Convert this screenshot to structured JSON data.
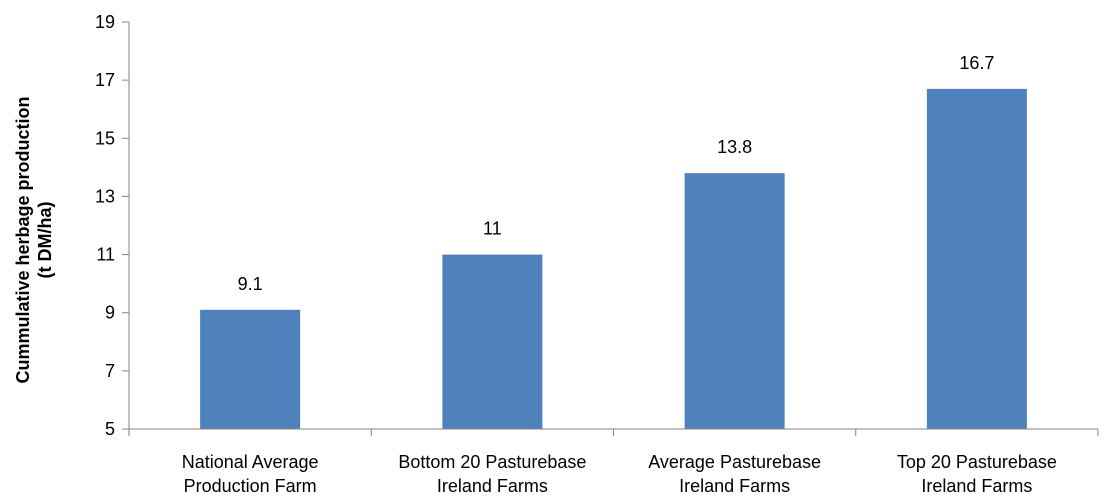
{
  "chart_data": {
    "type": "bar",
    "title": "",
    "xlabel": "",
    "ylabel_lines": [
      "Cummulative herbage production",
      "(t DM/ha)"
    ],
    "categories": [
      [
        "National Average",
        "Production Farm"
      ],
      [
        "Bottom 20 Pasturebase",
        "Ireland Farms"
      ],
      [
        "Average Pasturebase",
        "Ireland Farms"
      ],
      [
        "Top 20 Pasturebase",
        "Ireland Farms"
      ]
    ],
    "values": [
      9.1,
      11,
      13.8,
      16.7
    ],
    "value_labels": [
      "9.1",
      "11",
      "13.8",
      "16.7"
    ],
    "ylim": [
      5,
      19
    ],
    "yticks": [
      5,
      7,
      9,
      11,
      13,
      15,
      17,
      19
    ],
    "grid": false,
    "legend": "none",
    "bar_color": "#4F81BD",
    "axis_color": "#868686"
  }
}
